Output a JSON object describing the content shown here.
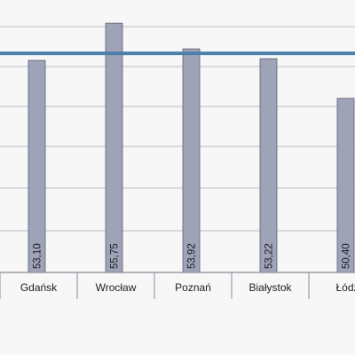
{
  "chart_data": {
    "type": "bar",
    "categories": [
      "Gdańsk",
      "Wrocław",
      "Poznań",
      "Białystok",
      "Łódź"
    ],
    "values": [
      53.1,
      55.75,
      53.92,
      53.22,
      50.4
    ],
    "value_labels": [
      "53,10",
      "55,75",
      "53,92",
      "53,22",
      "50,40"
    ],
    "reference_line": 53.6,
    "ylim": [
      38.0,
      57.4
    ],
    "grid": true,
    "colors": {
      "bar_fill": "#9ea3b8",
      "bar_stroke": "#5b5e70",
      "reference_line": "#4a80a9",
      "grid": "#b9bcc4",
      "axis": "#8a8d96",
      "text": "#1d1d1f"
    }
  }
}
